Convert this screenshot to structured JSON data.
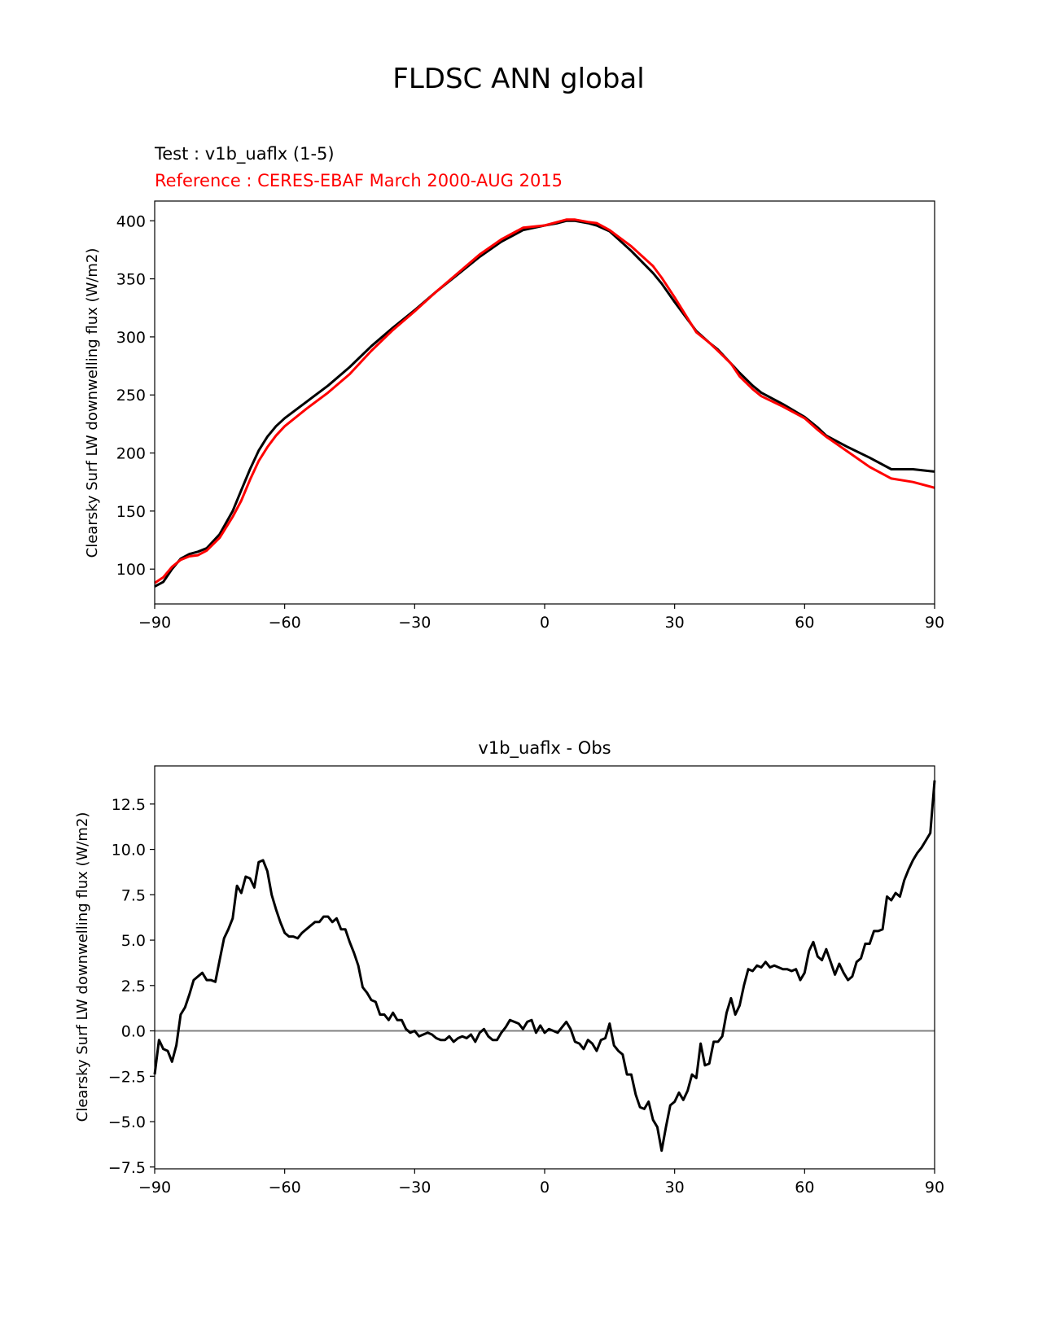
{
  "figure": {
    "title": "FLDSC ANN global",
    "test_label": "Test : v1b_uaflx (1-5)",
    "reference_label": "Reference : CERES-EBAF March 2000-AUG 2015",
    "colors": {
      "test": "#000000",
      "reference": "#ff0000",
      "zero_line": "#808080"
    }
  },
  "chart_data": [
    {
      "type": "line",
      "title": "",
      "xlabel": "",
      "ylabel": "Clearsky Surf LW downwelling flux (W/m2)",
      "xlim": [
        -90,
        90
      ],
      "ylim": [
        70,
        417
      ],
      "xticks": [
        -90,
        -60,
        -30,
        0,
        30,
        60,
        90
      ],
      "xtick_labels": [
        "−90",
        "−60",
        "−30",
        "0",
        "30",
        "60",
        "90"
      ],
      "yticks": [
        100,
        150,
        200,
        250,
        300,
        350,
        400
      ],
      "grid": false,
      "series": [
        {
          "role": "test",
          "x": [
            -90,
            -88,
            -86,
            -84,
            -82,
            -80,
            -78,
            -75,
            -72,
            -70,
            -68,
            -66,
            -64,
            -62,
            -60,
            -55,
            -50,
            -45,
            -40,
            -35,
            -30,
            -25,
            -20,
            -15,
            -10,
            -5,
            0,
            3,
            5,
            7,
            10,
            12,
            15,
            20,
            25,
            27,
            30,
            33,
            35,
            38,
            40,
            43,
            45,
            48,
            50,
            55,
            60,
            63,
            65,
            70,
            75,
            80,
            85,
            90
          ],
          "y": [
            85,
            89,
            100,
            109,
            113,
            115,
            118,
            130,
            150,
            168,
            186,
            202,
            214,
            223,
            230,
            244,
            258,
            274,
            292,
            308,
            323,
            339,
            354,
            369,
            382,
            392,
            396,
            398,
            400,
            400,
            398,
            396,
            391,
            374,
            355,
            346,
            330,
            315,
            305,
            295,
            289,
            277,
            269,
            258,
            252,
            242,
            231,
            222,
            215,
            205,
            196,
            186,
            186,
            184
          ]
        },
        {
          "role": "reference",
          "x": [
            -90,
            -88,
            -86,
            -84,
            -82,
            -80,
            -78,
            -75,
            -72,
            -70,
            -68,
            -66,
            -64,
            -62,
            -60,
            -55,
            -50,
            -45,
            -40,
            -35,
            -30,
            -25,
            -20,
            -15,
            -10,
            -5,
            0,
            3,
            5,
            7,
            10,
            12,
            15,
            20,
            25,
            27,
            30,
            33,
            35,
            38,
            40,
            43,
            45,
            48,
            50,
            55,
            60,
            63,
            65,
            70,
            75,
            80,
            85,
            90
          ],
          "y": [
            88,
            93,
            102,
            108,
            111,
            112,
            116,
            127,
            145,
            159,
            177,
            193,
            205,
            215,
            223,
            238,
            252,
            268,
            288,
            306,
            322,
            339,
            355,
            371,
            384,
            394,
            396,
            399,
            401,
            401,
            399,
            398,
            392,
            378,
            361,
            351,
            334,
            316,
            304,
            295,
            288,
            277,
            266,
            255,
            249,
            240,
            230,
            220,
            214,
            201,
            188,
            178,
            175,
            170
          ]
        }
      ]
    },
    {
      "type": "line",
      "title": "v1b_uaflx - Obs",
      "xlabel": "",
      "ylabel": "Clearsky Surf LW downwelling flux (W/m2)",
      "xlim": [
        -90,
        90
      ],
      "ylim": [
        -7.6,
        14.6
      ],
      "xticks": [
        -90,
        -60,
        -30,
        0,
        30,
        60,
        90
      ],
      "xtick_labels": [
        "−90",
        "−60",
        "−30",
        "0",
        "30",
        "60",
        "90"
      ],
      "yticks": [
        -7.5,
        -5.0,
        -2.5,
        0.0,
        2.5,
        5.0,
        7.5,
        10.0,
        12.5
      ],
      "ytick_labels": [
        "−7.5",
        "−5.0",
        "−2.5",
        "0.0",
        "2.5",
        "5.0",
        "7.5",
        "10.0",
        "12.5"
      ],
      "zero_line": 0,
      "grid": false,
      "series": [
        {
          "role": "difference",
          "x": [
            -90,
            -89,
            -88,
            -87,
            -86,
            -85,
            -84,
            -83,
            -82,
            -81,
            -80,
            -79,
            -78,
            -77,
            -76,
            -75,
            -74,
            -73,
            -72,
            -71,
            -70,
            -69,
            -68,
            -67,
            -66,
            -65,
            -64,
            -63,
            -62,
            -61,
            -60,
            -59,
            -58,
            -57,
            -56,
            -55,
            -54,
            -53,
            -52,
            -51,
            -50,
            -49,
            -48,
            -47,
            -46,
            -45,
            -44,
            -43,
            -42,
            -41,
            -40,
            -39,
            -38,
            -37,
            -36,
            -35,
            -34,
            -33,
            -32,
            -31,
            -30,
            -29,
            -28,
            -27,
            -26,
            -25,
            -24,
            -23,
            -22,
            -21,
            -20,
            -19,
            -18,
            -17,
            -16,
            -15,
            -14,
            -13,
            -12,
            -11,
            -10,
            -9,
            -8,
            -7,
            -6,
            -5,
            -4,
            -3,
            -2,
            -1,
            0,
            1,
            2,
            3,
            4,
            5,
            6,
            7,
            8,
            9,
            10,
            11,
            12,
            13,
            14,
            15,
            16,
            17,
            18,
            19,
            20,
            21,
            22,
            23,
            24,
            25,
            26,
            27,
            28,
            29,
            30,
            31,
            32,
            33,
            34,
            35,
            36,
            37,
            38,
            39,
            40,
            41,
            42,
            43,
            44,
            45,
            46,
            47,
            48,
            49,
            50,
            51,
            52,
            53,
            54,
            55,
            56,
            57,
            58,
            59,
            60,
            61,
            62,
            63,
            64,
            65,
            66,
            67,
            68,
            69,
            70,
            71,
            72,
            73,
            74,
            75,
            76,
            77,
            78,
            79,
            80,
            81,
            82,
            83,
            84,
            85,
            86,
            87,
            88,
            89,
            90
          ],
          "y": [
            -2.4,
            -0.5,
            -1.0,
            -1.1,
            -1.7,
            -0.8,
            0.9,
            1.3,
            2.0,
            2.8,
            3.0,
            3.2,
            2.8,
            2.8,
            2.7,
            3.9,
            5.1,
            5.6,
            6.2,
            8.0,
            7.6,
            8.5,
            8.4,
            7.9,
            9.3,
            9.4,
            8.8,
            7.5,
            6.7,
            6.0,
            5.4,
            5.2,
            5.2,
            5.1,
            5.4,
            5.6,
            5.8,
            6.0,
            6.0,
            6.3,
            6.3,
            6.0,
            6.2,
            5.6,
            5.6,
            4.9,
            4.3,
            3.6,
            2.4,
            2.1,
            1.7,
            1.6,
            0.9,
            0.9,
            0.6,
            1.0,
            0.6,
            0.6,
            0.1,
            -0.1,
            0.0,
            -0.3,
            -0.2,
            -0.1,
            -0.2,
            -0.4,
            -0.5,
            -0.5,
            -0.3,
            -0.6,
            -0.4,
            -0.3,
            -0.4,
            -0.2,
            -0.6,
            -0.1,
            0.1,
            -0.3,
            -0.5,
            -0.5,
            -0.1,
            0.2,
            0.6,
            0.5,
            0.4,
            0.1,
            0.5,
            0.6,
            -0.1,
            0.3,
            -0.1,
            0.1,
            0.0,
            -0.1,
            0.2,
            0.5,
            0.1,
            -0.6,
            -0.7,
            -1.0,
            -0.5,
            -0.7,
            -1.1,
            -0.5,
            -0.4,
            0.4,
            -0.8,
            -1.1,
            -1.3,
            -2.4,
            -2.4,
            -3.5,
            -4.2,
            -4.3,
            -3.9,
            -4.9,
            -5.3,
            -6.6,
            -5.3,
            -4.1,
            -3.9,
            -3.4,
            -3.8,
            -3.3,
            -2.4,
            -2.6,
            -0.7,
            -1.9,
            -1.8,
            -0.6,
            -0.6,
            -0.3,
            1.0,
            1.8,
            0.9,
            1.4,
            2.5,
            3.4,
            3.3,
            3.6,
            3.5,
            3.8,
            3.5,
            3.6,
            3.5,
            3.4,
            3.4,
            3.3,
            3.4,
            2.8,
            3.2,
            4.4,
            4.9,
            4.1,
            3.9,
            4.5,
            3.8,
            3.1,
            3.7,
            3.2,
            2.8,
            3.0,
            3.8,
            4.0,
            4.8,
            4.8,
            5.5,
            5.5,
            5.6,
            7.4,
            7.2,
            7.6,
            7.4,
            8.3,
            8.9,
            9.4,
            9.8,
            10.1,
            10.5,
            10.9,
            13.8
          ]
        }
      ]
    }
  ]
}
